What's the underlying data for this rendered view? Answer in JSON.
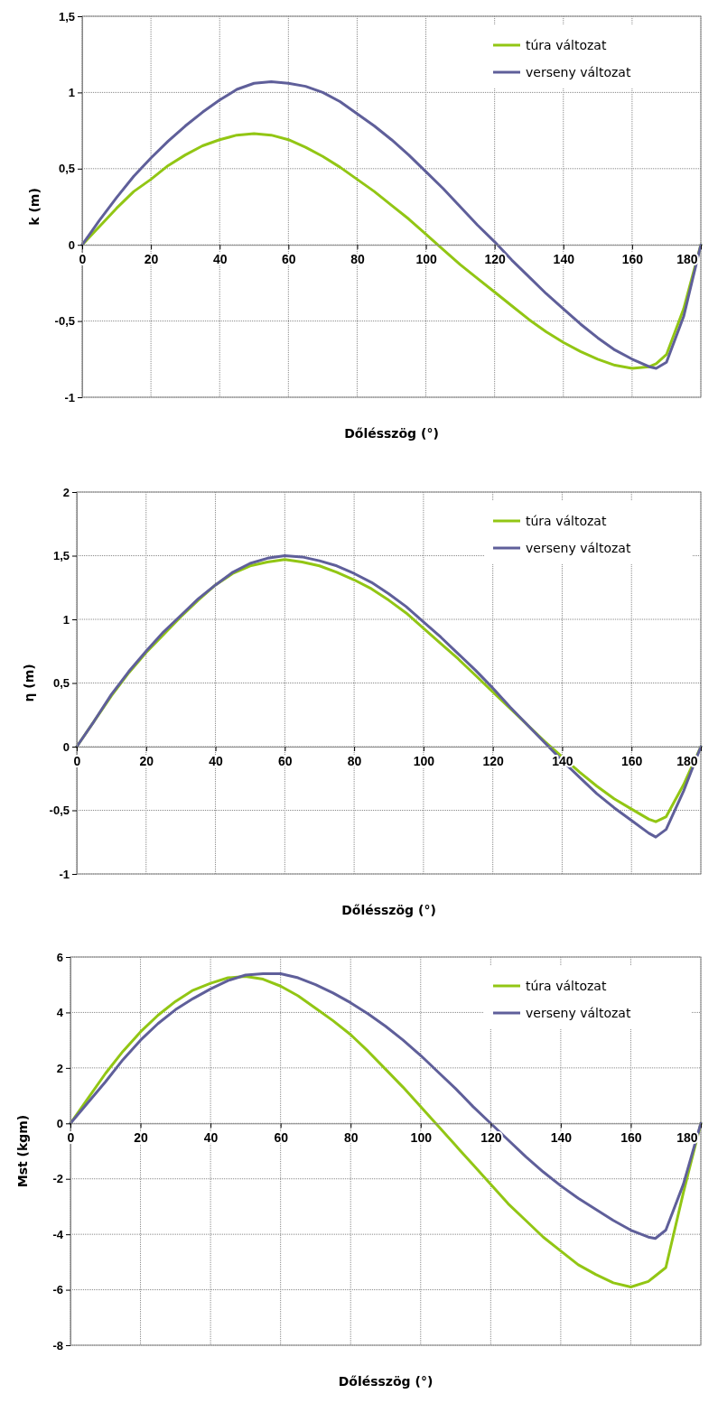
{
  "chart_data": [
    {
      "type": "line",
      "xlabel": "Dőlésszög (°)",
      "ylabel": "k (m)",
      "xlim": [
        0,
        180
      ],
      "ylim": [
        -1,
        1.5
      ],
      "xticks": [
        0,
        20,
        40,
        60,
        80,
        100,
        120,
        140,
        160,
        180
      ],
      "yticks": [
        {
          "value": -1,
          "label": "-1"
        },
        {
          "value": -0.5,
          "label": "-0,5"
        },
        {
          "value": 0,
          "label": "0"
        },
        {
          "value": 0.5,
          "label": "0,5"
        },
        {
          "value": 1,
          "label": "1"
        },
        {
          "value": 1.5,
          "label": "1,5"
        }
      ],
      "grid": true,
      "legend": "top right",
      "marker": "none",
      "line_style": "solid",
      "x": [
        0,
        5,
        10,
        15,
        20,
        25,
        30,
        35,
        40,
        45,
        50,
        55,
        60,
        65,
        70,
        75,
        80,
        85,
        90,
        95,
        100,
        105,
        110,
        115,
        120,
        125,
        130,
        135,
        140,
        145,
        150,
        155,
        160,
        165,
        167,
        170,
        175,
        180
      ],
      "series": [
        {
          "name": "túra változat",
          "color": "#92c614",
          "values": [
            0,
            0.12,
            0.24,
            0.35,
            0.43,
            0.52,
            0.59,
            0.65,
            0.69,
            0.72,
            0.73,
            0.72,
            0.69,
            0.64,
            0.58,
            0.51,
            0.43,
            0.35,
            0.26,
            0.17,
            0.07,
            -0.03,
            -0.13,
            -0.22,
            -0.31,
            -0.4,
            -0.49,
            -0.57,
            -0.64,
            -0.7,
            -0.75,
            -0.79,
            -0.81,
            -0.8,
            -0.78,
            -0.72,
            -0.42,
            0
          ]
        },
        {
          "name": "verseny változat",
          "color": "#5f5f9a",
          "values": [
            0,
            0.16,
            0.31,
            0.45,
            0.57,
            0.68,
            0.78,
            0.87,
            0.95,
            1.02,
            1.06,
            1.07,
            1.06,
            1.04,
            1.0,
            0.94,
            0.86,
            0.78,
            0.69,
            0.59,
            0.48,
            0.37,
            0.25,
            0.13,
            0.02,
            -0.1,
            -0.21,
            -0.32,
            -0.42,
            -0.52,
            -0.61,
            -0.69,
            -0.75,
            -0.8,
            -0.81,
            -0.77,
            -0.47,
            0
          ]
        }
      ]
    },
    {
      "type": "line",
      "xlabel": "Dőlésszög (°)",
      "ylabel": "η (m)",
      "xlim": [
        0,
        180
      ],
      "ylim": [
        -1,
        2
      ],
      "xticks": [
        0,
        20,
        40,
        60,
        80,
        100,
        120,
        140,
        160,
        180
      ],
      "yticks": [
        {
          "value": -1,
          "label": "-1"
        },
        {
          "value": -0.5,
          "label": "-0,5"
        },
        {
          "value": 0,
          "label": "0"
        },
        {
          "value": 0.5,
          "label": "0,5"
        },
        {
          "value": 1,
          "label": "1"
        },
        {
          "value": 1.5,
          "label": "1,5"
        },
        {
          "value": 2,
          "label": "2"
        }
      ],
      "grid": true,
      "legend": "top right",
      "marker": "none",
      "line_style": "solid",
      "x": [
        0,
        5,
        10,
        15,
        20,
        25,
        30,
        35,
        40,
        45,
        50,
        55,
        60,
        65,
        70,
        75,
        80,
        85,
        90,
        95,
        100,
        105,
        110,
        115,
        120,
        125,
        130,
        135,
        140,
        145,
        150,
        155,
        160,
        165,
        167,
        170,
        175,
        180
      ],
      "series": [
        {
          "name": "túra változat",
          "color": "#92c614",
          "values": [
            0,
            0.2,
            0.4,
            0.58,
            0.74,
            0.88,
            1.02,
            1.15,
            1.27,
            1.36,
            1.42,
            1.45,
            1.47,
            1.45,
            1.42,
            1.37,
            1.31,
            1.24,
            1.15,
            1.05,
            0.93,
            0.81,
            0.69,
            0.56,
            0.43,
            0.3,
            0.17,
            0.04,
            -0.08,
            -0.2,
            -0.31,
            -0.41,
            -0.49,
            -0.57,
            -0.59,
            -0.55,
            -0.3,
            0
          ]
        },
        {
          "name": "verseny változat",
          "color": "#5f5f9a",
          "values": [
            0,
            0.2,
            0.41,
            0.59,
            0.75,
            0.9,
            1.03,
            1.16,
            1.27,
            1.37,
            1.44,
            1.48,
            1.5,
            1.49,
            1.46,
            1.42,
            1.36,
            1.29,
            1.2,
            1.1,
            0.98,
            0.86,
            0.73,
            0.6,
            0.46,
            0.31,
            0.17,
            0.03,
            -0.11,
            -0.24,
            -0.37,
            -0.48,
            -0.58,
            -0.68,
            -0.71,
            -0.65,
            -0.35,
            0
          ]
        }
      ]
    },
    {
      "type": "line",
      "xlabel": "Dőlésszög (°)",
      "ylabel": "Mst (kgm)",
      "xlim": [
        0,
        180
      ],
      "ylim": [
        -8,
        6
      ],
      "xticks": [
        0,
        20,
        40,
        60,
        80,
        100,
        120,
        140,
        160,
        180
      ],
      "yticks": [
        -8,
        -6,
        -4,
        -2,
        0,
        2,
        4,
        6
      ],
      "grid": true,
      "legend": "top right",
      "marker": "none",
      "line_style": "solid",
      "x": [
        0,
        5,
        10,
        15,
        20,
        25,
        30,
        35,
        40,
        45,
        50,
        55,
        60,
        65,
        70,
        75,
        80,
        85,
        90,
        95,
        100,
        105,
        110,
        115,
        120,
        125,
        130,
        135,
        140,
        145,
        150,
        155,
        160,
        165,
        167,
        170,
        175,
        180
      ],
      "series": [
        {
          "name": "túra változat",
          "color": "#92c614",
          "values": [
            0,
            0.9,
            1.8,
            2.6,
            3.3,
            3.9,
            4.4,
            4.8,
            5.05,
            5.25,
            5.3,
            5.2,
            4.95,
            4.6,
            4.15,
            3.7,
            3.2,
            2.6,
            1.95,
            1.3,
            0.6,
            -0.1,
            -0.8,
            -1.5,
            -2.2,
            -2.9,
            -3.5,
            -4.1,
            -4.6,
            -5.1,
            -5.45,
            -5.75,
            -5.9,
            -5.7,
            -5.5,
            -5.2,
            -2.5,
            0
          ]
        },
        {
          "name": "verseny változat",
          "color": "#5f5f9a",
          "values": [
            0,
            0.75,
            1.5,
            2.3,
            3.0,
            3.6,
            4.1,
            4.5,
            4.85,
            5.15,
            5.35,
            5.4,
            5.4,
            5.25,
            5.0,
            4.7,
            4.35,
            3.95,
            3.5,
            3.0,
            2.45,
            1.85,
            1.25,
            0.6,
            0,
            -0.6,
            -1.2,
            -1.75,
            -2.25,
            -2.7,
            -3.1,
            -3.5,
            -3.85,
            -4.1,
            -4.15,
            -3.85,
            -2.2,
            0
          ]
        }
      ]
    }
  ]
}
